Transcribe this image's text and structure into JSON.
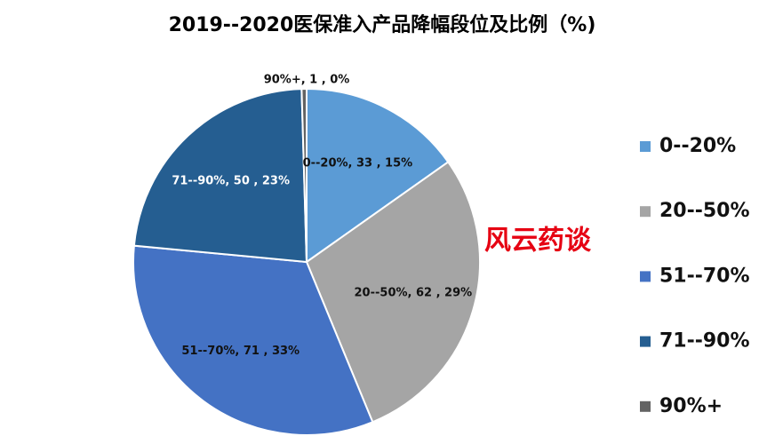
{
  "chart_data": {
    "type": "pie",
    "title": "2019--2020医保准入产品降幅段位及比例（%)",
    "watermark": "风云药谈",
    "categories": [
      "0--20%",
      "20--50%",
      "51--70%",
      "71--90%",
      "90%+"
    ],
    "values": [
      33,
      62,
      71,
      50,
      1
    ],
    "value_labels": [
      "0--20%, 33 , 15%",
      "20--50%, 62 , 29%",
      "51--70%, 71 , 33%",
      "71--90%, 50 , 23%",
      "90%+, 1 , 0%"
    ],
    "colors": [
      "#5b9bd5",
      "#a5a5a5",
      "#4472c4",
      "#255e91",
      "#636363"
    ],
    "legend": "right"
  }
}
